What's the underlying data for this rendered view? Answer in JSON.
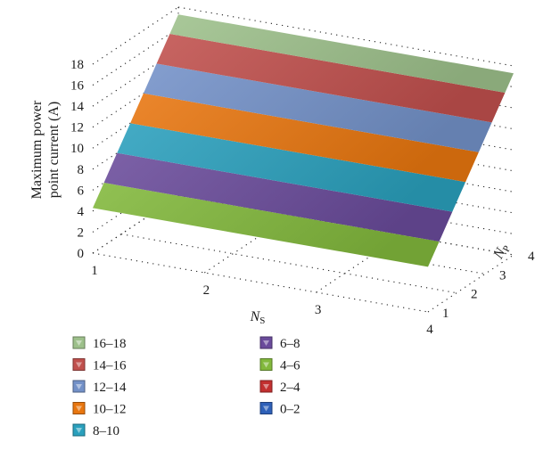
{
  "chart_data": {
    "type": "surface3d",
    "x_axis": {
      "label": "N",
      "label_subscript": "S",
      "ticks": [
        "1",
        "2",
        "3",
        "4"
      ],
      "range": [
        1,
        4
      ]
    },
    "y_axis": {
      "label": "N",
      "label_subscript": "P",
      "ticks": [
        "1",
        "2",
        "3",
        "4"
      ],
      "range": [
        1,
        4
      ]
    },
    "z_axis": {
      "label_line1": "Maximum power",
      "label_line2": "point current (A)",
      "ticks": [
        "0",
        "2",
        "4",
        "6",
        "8",
        "10",
        "12",
        "14",
        "16",
        "18"
      ],
      "range": [
        0,
        18
      ]
    },
    "Ns": [
      1,
      2,
      3,
      4
    ],
    "Np": [
      1,
      2,
      3,
      4
    ],
    "z_values_by_Np": {
      "1": [
        4.3,
        4.3,
        4.3,
        4.3
      ],
      "2": [
        8.7,
        8.7,
        8.7,
        8.7
      ],
      "3": [
        13.0,
        13.0,
        13.0,
        13.0
      ],
      "4": [
        17.3,
        17.3,
        17.3,
        17.3
      ]
    },
    "grid": true,
    "legend_position": "bottom",
    "legend": [
      {
        "label": "16–18",
        "color": "#9dc08b"
      },
      {
        "label": "14–16",
        "color": "#c0504d"
      },
      {
        "label": "12–14",
        "color": "#7391c8"
      },
      {
        "label": "10–12",
        "color": "#e8760f"
      },
      {
        "label": "8–10",
        "color": "#2aa0bd"
      },
      {
        "label": "6–8",
        "color": "#6a4b9b"
      },
      {
        "label": "4–6",
        "color": "#82b83c"
      },
      {
        "label": "2–4",
        "color": "#c23030"
      },
      {
        "label": "0–2",
        "color": "#2e60b8"
      }
    ]
  }
}
